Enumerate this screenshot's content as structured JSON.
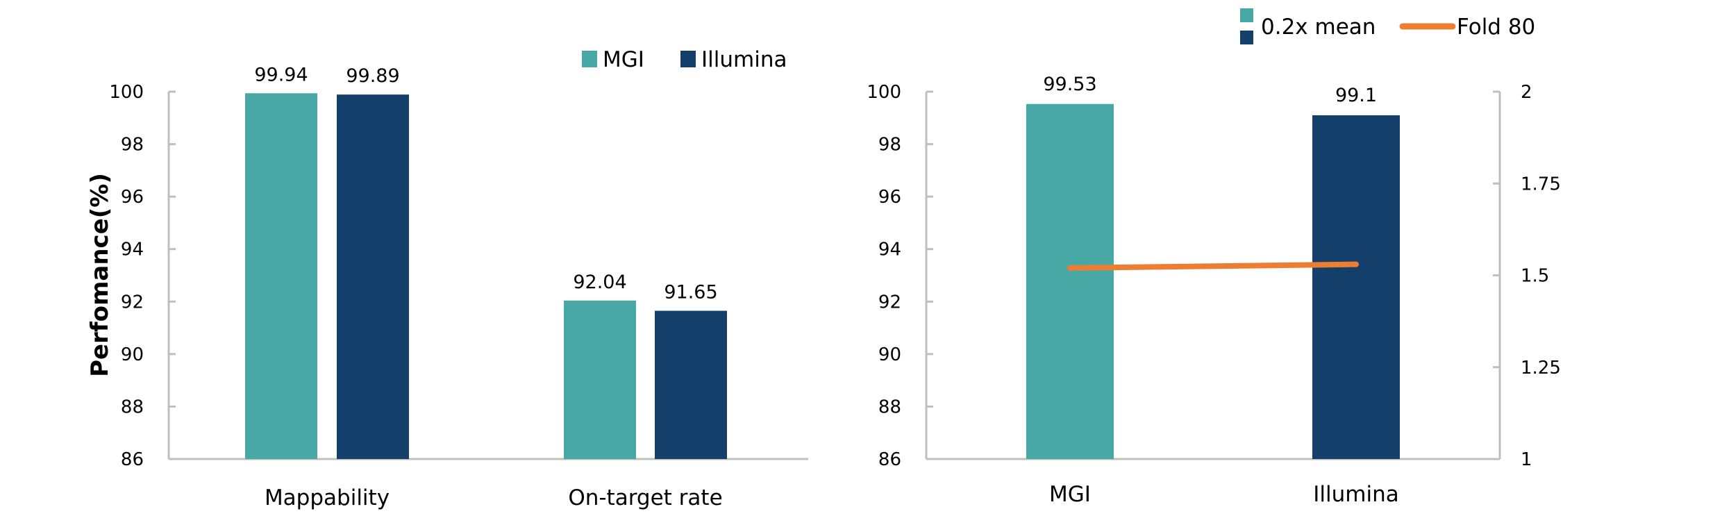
{
  "colors": {
    "mgi": "#48a8a6",
    "illumina": "#143f6b",
    "fold80": "#ed7d31",
    "axis": "#bfbfbf"
  },
  "chart_data": [
    {
      "type": "bar",
      "title": "",
      "ylabel": "Perfomance(%)",
      "xlabel": "",
      "ylim": [
        86,
        100
      ],
      "yticks": [
        "86",
        "88",
        "90",
        "92",
        "94",
        "96",
        "98",
        "100"
      ],
      "categories": [
        "Mappability",
        "On-target rate"
      ],
      "series": [
        {
          "name": "MGI",
          "values": [
            99.94,
            92.04
          ],
          "labels": [
            "99.94",
            "92.04"
          ]
        },
        {
          "name": "Illumina",
          "values": [
            99.89,
            91.65
          ],
          "labels": [
            "99.89",
            "91.65"
          ]
        }
      ],
      "legend": "top-right"
    },
    {
      "type": "bar",
      "title": "",
      "ylim": [
        86,
        100
      ],
      "y2lim": [
        1,
        2
      ],
      "yticks": [
        "86",
        "88",
        "90",
        "92",
        "94",
        "96",
        "98",
        "100"
      ],
      "y2ticks": [
        "1",
        "1.25",
        "1.5",
        "1.75",
        "2"
      ],
      "categories": [
        "MGI",
        "Illumina"
      ],
      "bar_series": {
        "name": "0.2x mean",
        "values": [
          99.53,
          99.1
        ],
        "labels": [
          "99.53",
          "99.1"
        ]
      },
      "line_series": {
        "name": "Fold 80",
        "values": [
          1.52,
          1.53
        ],
        "axis": "secondary"
      },
      "legend": "top"
    }
  ]
}
